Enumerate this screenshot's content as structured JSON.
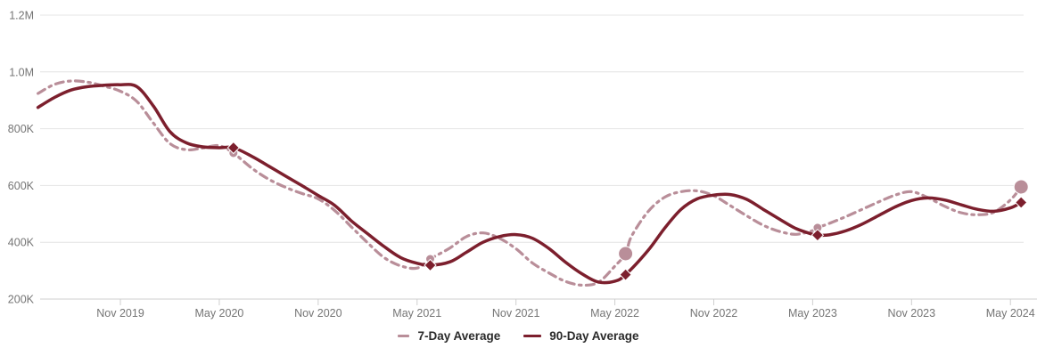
{
  "chart_data": {
    "type": "line",
    "title": "",
    "unit": "page views (thousands)",
    "x_unit": "months_since_2019-06",
    "grid": "horizontal",
    "legend_position": "bottom-center",
    "x_axis": {
      "tick_labels": [
        "Nov 2019",
        "May 2020",
        "Nov 2020",
        "May 2021",
        "Nov 2021",
        "May 2022",
        "Nov 2022",
        "May 2023",
        "Nov 2023",
        "May 2024"
      ],
      "tick_month_index": [
        5,
        11,
        17,
        23,
        29,
        35,
        41,
        47,
        53,
        59
      ]
    },
    "y_axis": {
      "tick_labels": [
        "200K",
        "400K",
        "600K",
        "800K",
        "1.0M",
        "1.2M"
      ],
      "tick_values_k": [
        200,
        400,
        600,
        800,
        1000,
        1200
      ],
      "range_k": [
        200,
        1200
      ]
    },
    "series": [
      {
        "name": "7-Day Average",
        "style": "dash-dot",
        "color": "#b98e99",
        "points": [
          [
            0,
            924
          ],
          [
            1,
            956
          ],
          [
            2,
            968
          ],
          [
            3,
            964
          ],
          [
            4,
            950
          ],
          [
            5,
            932
          ],
          [
            6,
            896
          ],
          [
            7,
            820
          ],
          [
            8,
            748
          ],
          [
            9,
            726
          ],
          [
            10,
            732
          ],
          [
            11,
            740
          ],
          [
            11.86,
            714
          ],
          [
            13,
            660
          ],
          [
            14,
            622
          ],
          [
            15,
            594
          ],
          [
            16,
            572
          ],
          [
            17,
            553
          ],
          [
            18,
            512
          ],
          [
            19,
            455
          ],
          [
            20,
            398
          ],
          [
            21,
            346
          ],
          [
            22,
            317
          ],
          [
            23,
            309
          ],
          [
            23.8,
            341
          ],
          [
            25,
            380
          ],
          [
            26,
            420
          ],
          [
            27,
            433
          ],
          [
            28,
            414
          ],
          [
            29,
            377
          ],
          [
            30,
            327
          ],
          [
            31,
            292
          ],
          [
            32,
            262
          ],
          [
            33,
            249
          ],
          [
            34,
            259
          ],
          [
            35,
            316
          ],
          [
            35.65,
            360
          ],
          [
            36,
            420
          ],
          [
            37,
            507
          ],
          [
            38,
            558
          ],
          [
            39,
            578
          ],
          [
            40,
            581
          ],
          [
            41,
            564
          ],
          [
            42,
            529
          ],
          [
            43,
            493
          ],
          [
            44,
            460
          ],
          [
            45,
            438
          ],
          [
            46,
            428
          ],
          [
            47,
            441
          ],
          [
            47.3,
            451
          ],
          [
            48,
            466
          ],
          [
            49,
            490
          ],
          [
            50,
            516
          ],
          [
            51,
            542
          ],
          [
            52,
            566
          ],
          [
            53,
            578
          ],
          [
            54,
            557
          ],
          [
            55,
            527
          ],
          [
            56,
            504
          ],
          [
            57,
            497
          ],
          [
            58,
            506
          ],
          [
            59,
            549
          ],
          [
            59.65,
            595
          ]
        ]
      },
      {
        "name": "90-Day Average",
        "style": "solid",
        "color": "#7c1f2d",
        "points": [
          [
            0,
            875
          ],
          [
            1,
            910
          ],
          [
            2,
            936
          ],
          [
            3,
            948
          ],
          [
            4,
            953
          ],
          [
            5,
            955
          ],
          [
            6,
            948
          ],
          [
            7,
            880
          ],
          [
            8,
            790
          ],
          [
            9,
            750
          ],
          [
            10,
            736
          ],
          [
            11,
            733
          ],
          [
            11.86,
            733
          ],
          [
            13,
            702
          ],
          [
            14,
            668
          ],
          [
            15,
            634
          ],
          [
            16,
            600
          ],
          [
            17,
            565
          ],
          [
            18,
            530
          ],
          [
            19,
            476
          ],
          [
            20,
            430
          ],
          [
            21,
            385
          ],
          [
            22,
            346
          ],
          [
            23,
            326
          ],
          [
            23.8,
            319
          ],
          [
            25,
            331
          ],
          [
            26,
            365
          ],
          [
            27,
            400
          ],
          [
            28,
            420
          ],
          [
            29,
            427
          ],
          [
            30,
            414
          ],
          [
            31,
            378
          ],
          [
            32,
            330
          ],
          [
            33,
            289
          ],
          [
            34,
            260
          ],
          [
            35,
            263
          ],
          [
            35.65,
            286
          ],
          [
            37,
            370
          ],
          [
            38,
            448
          ],
          [
            39,
            515
          ],
          [
            40,
            553
          ],
          [
            41,
            566
          ],
          [
            42,
            568
          ],
          [
            43,
            551
          ],
          [
            44,
            516
          ],
          [
            45,
            481
          ],
          [
            46,
            448
          ],
          [
            47,
            428
          ],
          [
            47.3,
            425
          ],
          [
            48,
            426
          ],
          [
            49,
            440
          ],
          [
            50,
            464
          ],
          [
            51,
            494
          ],
          [
            52,
            524
          ],
          [
            53,
            547
          ],
          [
            54,
            556
          ],
          [
            55,
            549
          ],
          [
            56,
            532
          ],
          [
            57,
            516
          ],
          [
            58,
            509
          ],
          [
            59,
            521
          ],
          [
            59.65,
            540
          ]
        ]
      }
    ],
    "markers": [
      {
        "series": "7-Day Average",
        "shape": "circle",
        "month": "May 2020",
        "x": 11.86,
        "value_k": 714,
        "radius": 5
      },
      {
        "series": "7-Day Average",
        "shape": "circle",
        "month": "May 2021",
        "x": 23.8,
        "value_k": 341,
        "radius": 5
      },
      {
        "series": "7-Day Average",
        "shape": "circle",
        "month": "May 2022",
        "x": 35.65,
        "value_k": 360,
        "radius": 8
      },
      {
        "series": "7-Day Average",
        "shape": "circle",
        "month": "May 2023",
        "x": 47.3,
        "value_k": 451,
        "radius": 5
      },
      {
        "series": "7-Day Average",
        "shape": "circle",
        "month": "May 2024",
        "x": 59.65,
        "value_k": 595,
        "radius": 8
      },
      {
        "series": "90-Day Average",
        "shape": "diamond",
        "month": "May 2020",
        "x": 11.86,
        "value_k": 733,
        "radius": 6.5
      },
      {
        "series": "90-Day Average",
        "shape": "diamond",
        "month": "May 2021",
        "x": 23.8,
        "value_k": 319,
        "radius": 6.5
      },
      {
        "series": "90-Day Average",
        "shape": "diamond",
        "month": "May 2022",
        "x": 35.65,
        "value_k": 286,
        "radius": 6.5
      },
      {
        "series": "90-Day Average",
        "shape": "diamond",
        "month": "May 2023",
        "x": 47.3,
        "value_k": 425,
        "radius": 6.5
      },
      {
        "series": "90-Day Average",
        "shape": "diamond",
        "month": "May 2024",
        "x": 59.65,
        "value_k": 540,
        "radius": 6.5
      }
    ]
  },
  "legend": {
    "items": [
      {
        "label": "7-Day Average"
      },
      {
        "label": "90-Day Average"
      }
    ]
  },
  "colors": {
    "series_7day": "#b98e99",
    "series_90day": "#7c1f2d",
    "gridline": "#e4e4e4",
    "axis_line": "#cfcfcf",
    "axis_text": "#757575",
    "legend_text": "#2a2a2a",
    "background": "#ffffff"
  }
}
